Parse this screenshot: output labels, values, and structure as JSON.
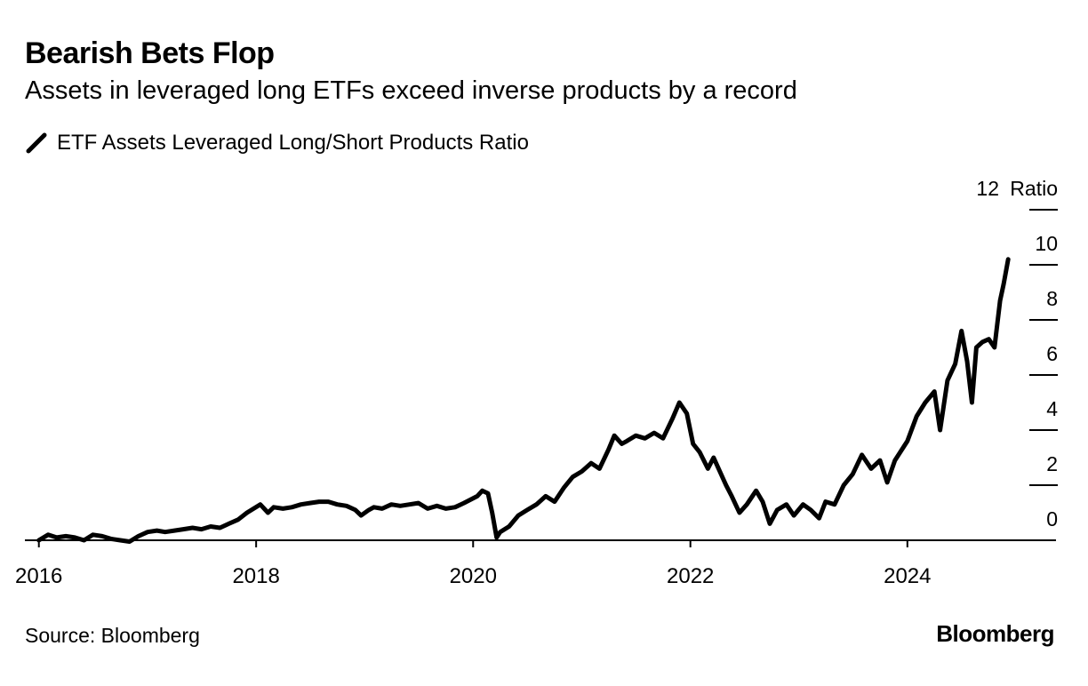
{
  "chart_data": {
    "type": "line",
    "title": "Bearish Bets Flop",
    "subtitle": "Assets in leveraged long ETFs exceed inverse products by a record",
    "series": [
      {
        "name": "ETF Assets Leveraged Long/Short Products Ratio",
        "color": "#000000",
        "points": [
          [
            "2016-01-01",
            0.0
          ],
          [
            "2016-02-01",
            0.2
          ],
          [
            "2016-03-01",
            0.1
          ],
          [
            "2016-04-01",
            0.15
          ],
          [
            "2016-05-01",
            0.1
          ],
          [
            "2016-06-01",
            0.0
          ],
          [
            "2016-07-01",
            0.2
          ],
          [
            "2016-08-01",
            0.15
          ],
          [
            "2016-09-01",
            0.05
          ],
          [
            "2016-10-01",
            0.0
          ],
          [
            "2016-11-01",
            -0.05
          ],
          [
            "2016-12-01",
            0.15
          ],
          [
            "2017-01-01",
            0.3
          ],
          [
            "2017-02-01",
            0.35
          ],
          [
            "2017-03-01",
            0.3
          ],
          [
            "2017-04-01",
            0.35
          ],
          [
            "2017-05-01",
            0.4
          ],
          [
            "2017-06-01",
            0.45
          ],
          [
            "2017-07-01",
            0.4
          ],
          [
            "2017-08-01",
            0.5
          ],
          [
            "2017-09-01",
            0.45
          ],
          [
            "2017-10-01",
            0.6
          ],
          [
            "2017-11-01",
            0.75
          ],
          [
            "2017-12-01",
            1.0
          ],
          [
            "2018-01-15",
            1.3
          ],
          [
            "2018-02-10",
            1.0
          ],
          [
            "2018-03-01",
            1.2
          ],
          [
            "2018-04-01",
            1.15
          ],
          [
            "2018-05-01",
            1.2
          ],
          [
            "2018-06-01",
            1.3
          ],
          [
            "2018-07-01",
            1.35
          ],
          [
            "2018-08-01",
            1.4
          ],
          [
            "2018-09-01",
            1.4
          ],
          [
            "2018-10-01",
            1.3
          ],
          [
            "2018-11-01",
            1.25
          ],
          [
            "2018-12-01",
            1.1
          ],
          [
            "2018-12-20",
            0.9
          ],
          [
            "2019-01-15",
            1.1
          ],
          [
            "2019-02-01",
            1.2
          ],
          [
            "2019-03-01",
            1.15
          ],
          [
            "2019-04-01",
            1.3
          ],
          [
            "2019-05-01",
            1.25
          ],
          [
            "2019-06-01",
            1.3
          ],
          [
            "2019-07-01",
            1.35
          ],
          [
            "2019-08-01",
            1.15
          ],
          [
            "2019-09-01",
            1.25
          ],
          [
            "2019-10-01",
            1.15
          ],
          [
            "2019-11-01",
            1.2
          ],
          [
            "2019-12-01",
            1.35
          ],
          [
            "2020-01-15",
            1.6
          ],
          [
            "2020-02-01",
            1.8
          ],
          [
            "2020-02-20",
            1.7
          ],
          [
            "2020-03-05",
            1.0
          ],
          [
            "2020-03-20",
            0.1
          ],
          [
            "2020-04-01",
            0.3
          ],
          [
            "2020-05-01",
            0.5
          ],
          [
            "2020-06-01",
            0.9
          ],
          [
            "2020-07-01",
            1.1
          ],
          [
            "2020-08-01",
            1.3
          ],
          [
            "2020-09-01",
            1.6
          ],
          [
            "2020-10-01",
            1.4
          ],
          [
            "2020-11-01",
            1.9
          ],
          [
            "2020-12-01",
            2.3
          ],
          [
            "2021-01-01",
            2.5
          ],
          [
            "2021-02-01",
            2.8
          ],
          [
            "2021-03-01",
            2.6
          ],
          [
            "2021-04-01",
            3.3
          ],
          [
            "2021-04-20",
            3.8
          ],
          [
            "2021-05-15",
            3.5
          ],
          [
            "2021-06-01",
            3.6
          ],
          [
            "2021-07-01",
            3.8
          ],
          [
            "2021-08-01",
            3.7
          ],
          [
            "2021-09-01",
            3.9
          ],
          [
            "2021-10-01",
            3.7
          ],
          [
            "2021-11-01",
            4.4
          ],
          [
            "2021-11-25",
            5.0
          ],
          [
            "2021-12-20",
            4.6
          ],
          [
            "2022-01-10",
            3.5
          ],
          [
            "2022-02-01",
            3.2
          ],
          [
            "2022-03-01",
            2.6
          ],
          [
            "2022-03-20",
            3.0
          ],
          [
            "2022-04-10",
            2.5
          ],
          [
            "2022-05-01",
            2.0
          ],
          [
            "2022-05-20",
            1.6
          ],
          [
            "2022-06-15",
            1.0
          ],
          [
            "2022-07-10",
            1.3
          ],
          [
            "2022-08-10",
            1.8
          ],
          [
            "2022-09-01",
            1.4
          ],
          [
            "2022-09-25",
            0.6
          ],
          [
            "2022-10-20",
            1.1
          ],
          [
            "2022-11-20",
            1.3
          ],
          [
            "2022-12-15",
            0.9
          ],
          [
            "2023-01-15",
            1.3
          ],
          [
            "2023-02-10",
            1.1
          ],
          [
            "2023-03-10",
            0.8
          ],
          [
            "2023-04-01",
            1.4
          ],
          [
            "2023-05-01",
            1.3
          ],
          [
            "2023-06-01",
            2.0
          ],
          [
            "2023-07-01",
            2.4
          ],
          [
            "2023-08-01",
            3.1
          ],
          [
            "2023-09-01",
            2.6
          ],
          [
            "2023-10-01",
            2.9
          ],
          [
            "2023-10-25",
            2.1
          ],
          [
            "2023-11-20",
            2.9
          ],
          [
            "2024-01-01",
            3.6
          ],
          [
            "2024-02-01",
            4.5
          ],
          [
            "2024-03-01",
            5.0
          ],
          [
            "2024-04-01",
            5.4
          ],
          [
            "2024-04-20",
            4.0
          ],
          [
            "2024-05-15",
            5.8
          ],
          [
            "2024-06-10",
            6.4
          ],
          [
            "2024-07-01",
            7.6
          ],
          [
            "2024-07-20",
            6.5
          ],
          [
            "2024-08-05",
            5.0
          ],
          [
            "2024-08-20",
            7.0
          ],
          [
            "2024-09-10",
            7.2
          ],
          [
            "2024-10-01",
            7.3
          ],
          [
            "2024-10-20",
            7.0
          ],
          [
            "2024-11-08",
            8.7
          ],
          [
            "2024-11-20",
            9.3
          ],
          [
            "2024-12-05",
            10.2
          ]
        ]
      }
    ],
    "ylim": [
      0,
      12
    ],
    "yticks": [
      0,
      2,
      4,
      6,
      8,
      10,
      12
    ],
    "ylabel": "Ratio",
    "yaxis_side": "right",
    "xlim": [
      "2015-11-15",
      "2025-05-15"
    ],
    "xticks": [
      "2016",
      "2018",
      "2020",
      "2022",
      "2024"
    ],
    "grid": false,
    "legend_position": "top-left"
  },
  "legend_label": "ETF Assets Leveraged Long/Short Products Ratio",
  "source": "Source: Bloomberg",
  "brand": "Bloomberg"
}
